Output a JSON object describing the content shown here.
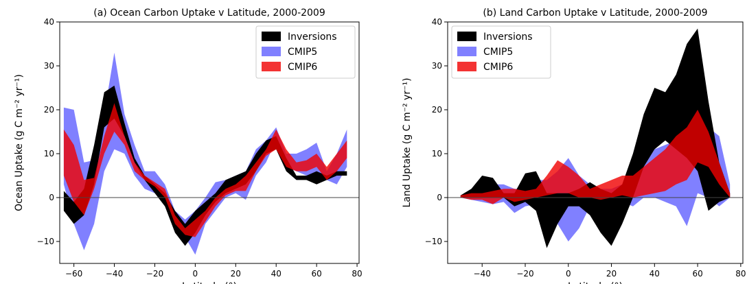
{
  "chart_data": [
    {
      "type": "area",
      "title": "(a) Ocean Carbon Uptake v Latitude, 2000-2009",
      "xlabel": "Latitude (°)",
      "ylabel": "Ocean Uptake (g C m⁻² yr⁻¹)",
      "xlim": [
        -67,
        81
      ],
      "ylim": [
        -15,
        40
      ],
      "xticks": [
        -60,
        -40,
        -20,
        0,
        20,
        40,
        60,
        80
      ],
      "yticks": [
        -10,
        0,
        10,
        20,
        30,
        40
      ],
      "zero_line": true,
      "legend_position": "top-right",
      "x": [
        -65,
        -60,
        -55,
        -50,
        -45,
        -40,
        -35,
        -30,
        -25,
        -20,
        -15,
        -10,
        -5,
        0,
        5,
        10,
        15,
        20,
        25,
        30,
        35,
        40,
        45,
        50,
        55,
        60,
        65,
        70,
        75
      ],
      "series": [
        {
          "name": "CMIP5",
          "color": "#8080ff",
          "upper": [
            20.5,
            20,
            8,
            8.5,
            19,
            33,
            19,
            12,
            6,
            6,
            3,
            -3,
            -5,
            -3,
            0,
            3.5,
            4,
            5,
            6,
            11,
            13,
            16,
            10,
            10,
            11,
            12.5,
            6,
            10,
            15.5
          ],
          "lower": [
            3,
            -6,
            -12,
            -6,
            6,
            11,
            10,
            5,
            2,
            1,
            -1,
            -6,
            -9,
            -13,
            -6,
            -3,
            0,
            1,
            -0.5,
            5,
            8,
            13,
            7,
            6,
            5,
            5,
            4,
            3,
            7
          ]
        },
        {
          "name": "Inversions",
          "color": "#000000",
          "upper": [
            1.5,
            -1,
            2,
            12,
            24,
            25.5,
            17,
            9,
            5,
            3,
            1,
            -3,
            -6,
            -3,
            -1,
            1,
            4,
            5,
            6,
            10,
            13,
            14,
            9,
            5,
            5,
            6,
            5,
            6,
            6
          ],
          "lower": [
            -3,
            -6,
            -4,
            3,
            16,
            18,
            14,
            8,
            4,
            1,
            -2,
            -8,
            -11,
            -8,
            -4,
            -1,
            1,
            2,
            3,
            6,
            10,
            11,
            6,
            4,
            4,
            3,
            4,
            5,
            5
          ]
        },
        {
          "name": "CMIP6",
          "color": "#f00000",
          "upper": [
            15.5,
            12,
            4,
            4.5,
            14,
            21.5,
            14,
            8,
            5,
            3.5,
            2,
            -4,
            -7,
            -5,
            -3,
            0,
            2,
            3,
            5,
            8,
            11,
            15.5,
            11,
            8,
            8.5,
            10,
            7,
            10,
            13
          ],
          "lower": [
            5,
            -1,
            -4,
            2,
            10,
            15,
            12,
            6,
            4,
            2.5,
            0,
            -6,
            -8.5,
            -9,
            -5.5,
            -2,
            0.5,
            1.5,
            1.5,
            6,
            9.5,
            11,
            7,
            6,
            6,
            7,
            4,
            6,
            9
          ]
        }
      ]
    },
    {
      "type": "area",
      "title": "(b) Land Carbon Uptake v Latitude, 2000-2009",
      "xlabel": "Latitude (°)",
      "ylabel": "Land Uptake (g C m⁻² yr⁻¹)",
      "xlim": [
        -56,
        81
      ],
      "ylim": [
        -15,
        40
      ],
      "xticks": [
        -40,
        -20,
        0,
        20,
        40,
        60,
        80
      ],
      "yticks": [
        -10,
        0,
        10,
        20,
        30,
        40
      ],
      "zero_line": true,
      "legend_position": "top-left",
      "x": [
        -50,
        -45,
        -40,
        -35,
        -30,
        -25,
        -20,
        -15,
        -10,
        -5,
        0,
        5,
        10,
        15,
        20,
        25,
        30,
        35,
        40,
        45,
        50,
        55,
        60,
        65,
        70,
        75
      ],
      "series": [
        {
          "name": "CMIP5",
          "color": "#8080ff",
          "upper": [
            0.5,
            1,
            2,
            3,
            3,
            2,
            2,
            4,
            4,
            6,
            9,
            5,
            3,
            2,
            2,
            3,
            4,
            7,
            11,
            12,
            13,
            15,
            17,
            16,
            14,
            3
          ],
          "lower": [
            0,
            -0.5,
            -1,
            -1.5,
            -1,
            -3.5,
            -2,
            -1.5,
            -1,
            -6,
            -10,
            -7,
            -2,
            -1,
            -1,
            -1,
            -2,
            0,
            0,
            -1,
            -2,
            -6.5,
            1,
            0,
            -2,
            0
          ]
        },
        {
          "name": "Inversions",
          "color": "#000000",
          "upper": [
            0.5,
            2,
            5,
            4.5,
            1,
            1,
            5.5,
            6,
            1,
            1,
            1,
            2,
            3.5,
            2,
            1,
            3,
            10,
            19,
            25,
            24,
            28,
            35,
            38.5,
            22,
            8,
            1
          ],
          "lower": [
            0,
            0,
            0,
            0,
            0,
            -2,
            -1,
            -3,
            -11.5,
            -6,
            -2,
            -2,
            -4,
            -8,
            -11,
            -6,
            0,
            7,
            11,
            13,
            11,
            9,
            6,
            -3,
            -1,
            0
          ]
        },
        {
          "name": "CMIP6",
          "color": "#f00000",
          "upper": [
            0.5,
            1,
            1,
            1.5,
            2,
            2,
            1.5,
            2,
            5,
            8.5,
            7,
            5,
            2,
            3,
            4,
            5,
            5,
            7,
            9,
            11,
            14,
            16,
            20,
            15,
            8,
            1
          ],
          "lower": [
            0,
            -0.5,
            -0.5,
            -1.5,
            0,
            -1,
            -0.5,
            0,
            0.5,
            1,
            1,
            0,
            0,
            -0.5,
            0,
            0.5,
            0,
            0.5,
            1,
            1.5,
            3,
            4,
            8,
            7,
            3,
            0
          ]
        }
      ]
    }
  ]
}
